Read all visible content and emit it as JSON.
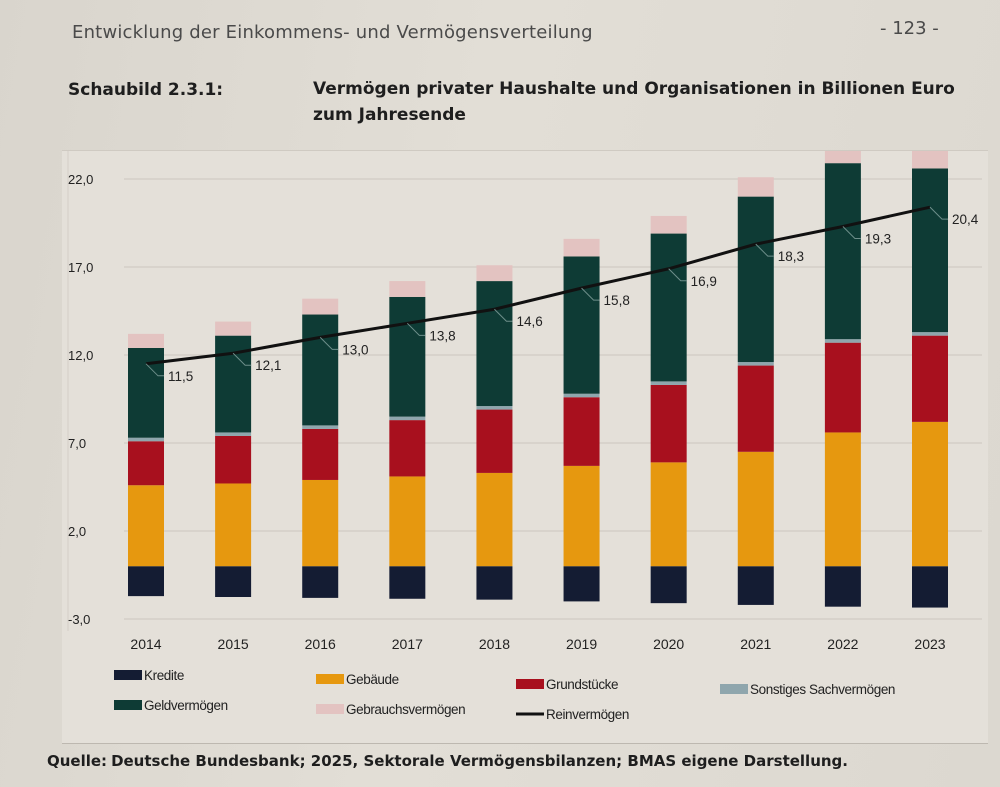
{
  "header": {
    "running_head": "Entwicklung der Einkommens- und Vermögensverteilung",
    "page_number": "- 123 -"
  },
  "figure": {
    "label": "Schaubild 2.3.1:",
    "title": "Vermögen privater Haushalte und Organisationen in Billionen Euro zum Jahresende"
  },
  "footer": {
    "source_label": "Quelle:",
    "source_text": "Deutsche Bundesbank; 2025, Sektorale Vermögensbilanzen; BMAS eigene Darstellung."
  },
  "colors": {
    "Kredite": "#141c33",
    "Gebäude": "#e6980f",
    "Grundstücke": "#a8101e",
    "Sonstiges Sachvermögen": "#8fa6ad",
    "Geldvermögen": "#0e3b35",
    "Gebrauchsvermögen": "#e3c3c1",
    "Reinvermögen": "#111111"
  },
  "chart_data": {
    "type": "bar",
    "stacked": true,
    "title": "Vermögen privater Haushalte und Organisationen in Billionen Euro zum Jahresende",
    "xlabel": "",
    "ylabel": "",
    "categories": [
      "2014",
      "2015",
      "2016",
      "2017",
      "2018",
      "2019",
      "2020",
      "2021",
      "2022",
      "2023"
    ],
    "yticks": [
      "22,0",
      "17,0",
      "12,0",
      "7,0",
      "2,0",
      "-3,0"
    ],
    "ytick_values": [
      22,
      17,
      12,
      7,
      2,
      -3
    ],
    "ylim": [
      -3,
      22
    ],
    "grid": true,
    "legend_position": "bottom",
    "series": [
      {
        "name": "Kredite",
        "kind": "bar",
        "values": [
          -1.7,
          -1.75,
          -1.8,
          -1.85,
          -1.9,
          -2.0,
          -2.1,
          -2.2,
          -2.3,
          -2.35
        ]
      },
      {
        "name": "Gebäude",
        "kind": "bar",
        "values": [
          4.6,
          4.7,
          4.9,
          5.1,
          5.3,
          5.7,
          5.9,
          6.5,
          7.6,
          8.2
        ]
      },
      {
        "name": "Grundstücke",
        "kind": "bar",
        "values": [
          2.5,
          2.7,
          2.9,
          3.2,
          3.6,
          3.9,
          4.4,
          4.9,
          5.1,
          4.9
        ]
      },
      {
        "name": "Sonstiges Sachvermögen",
        "kind": "bar",
        "values": [
          0.2,
          0.2,
          0.2,
          0.2,
          0.2,
          0.2,
          0.2,
          0.2,
          0.2,
          0.2
        ]
      },
      {
        "name": "Geldvermögen",
        "kind": "bar",
        "values": [
          5.1,
          5.5,
          6.3,
          6.8,
          7.1,
          7.8,
          8.4,
          9.4,
          10.0,
          9.3
        ]
      },
      {
        "name": "Gebrauchsvermögen",
        "kind": "bar",
        "values": [
          0.8,
          0.8,
          0.9,
          0.9,
          0.9,
          1.0,
          1.0,
          1.1,
          1.1,
          1.2
        ]
      },
      {
        "name": "Reinvermögen",
        "kind": "line",
        "values": [
          11.5,
          12.1,
          13.0,
          13.8,
          14.6,
          15.8,
          16.9,
          18.3,
          19.3,
          20.4
        ]
      }
    ],
    "line_labels": [
      "11,5",
      "12,1",
      "13,0",
      "13,8",
      "14,6",
      "15,8",
      "16,9",
      "18,3",
      "19,3",
      "20,4"
    ],
    "legend": [
      "Kredite",
      "Gebäude",
      "Grundstücke",
      "Sonstiges Sachvermögen",
      "Geldvermögen",
      "Gebrauchsvermögen",
      "Reinvermögen"
    ]
  }
}
